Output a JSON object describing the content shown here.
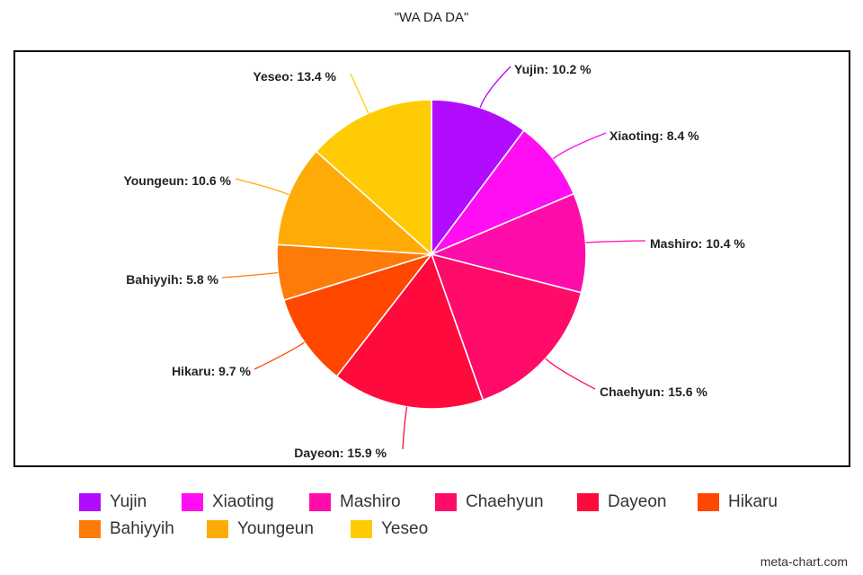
{
  "chart_data": {
    "type": "pie",
    "title": "\"WA DA DA\"",
    "legend_position": "bottom",
    "label_suffix": " %",
    "slices": [
      {
        "label": "Yujin",
        "value": 10.2,
        "color": "#b20cff"
      },
      {
        "label": "Xiaoting",
        "value": 8.4,
        "color": "#ff0ef3"
      },
      {
        "label": "Mashiro",
        "value": 10.4,
        "color": "#ff0dab"
      },
      {
        "label": "Chaehyun",
        "value": 15.6,
        "color": "#ff0b6a"
      },
      {
        "label": "Dayeon",
        "value": 15.9,
        "color": "#ff0a3d"
      },
      {
        "label": "Hikaru",
        "value": 9.7,
        "color": "#ff4700"
      },
      {
        "label": "Bahiyyih",
        "value": 5.8,
        "color": "#ff7b09"
      },
      {
        "label": "Youngeun",
        "value": 10.6,
        "color": "#ffab07"
      },
      {
        "label": "Yeseo",
        "value": 13.4,
        "color": "#ffcb04"
      }
    ]
  },
  "watermark": "meta-chart.com"
}
